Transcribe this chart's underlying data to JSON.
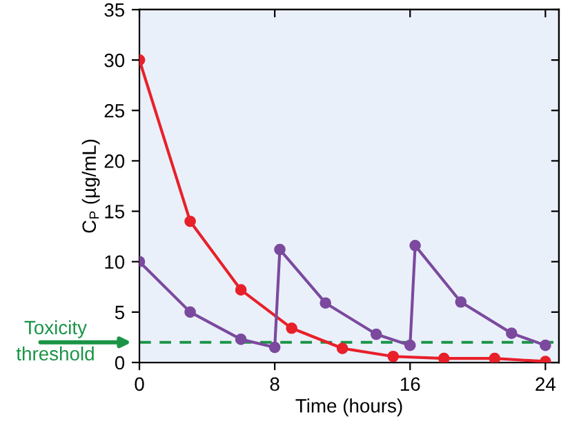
{
  "chart_data": {
    "type": "line",
    "xlabel": "Time (hours)",
    "ylabel": "C$_{P}$ (µg/mL)",
    "xlim": [
      0,
      24.8
    ],
    "ylim": [
      0,
      35
    ],
    "xticks": [
      0,
      8,
      16,
      24
    ],
    "yticks": [
      0,
      5,
      10,
      15,
      20,
      25,
      30,
      35
    ],
    "grid": false,
    "marker": "circle",
    "line_style": "solid",
    "series": [
      {
        "color": "#e8202a",
        "x": [
          0,
          3,
          6,
          9,
          12,
          15,
          18,
          21,
          24
        ],
        "values": [
          30,
          14,
          7.2,
          3.4,
          1.4,
          0.6,
          0.4,
          0.4,
          0.1
        ]
      },
      {
        "color": "#7b4a9e",
        "x": [
          0,
          3,
          6,
          8,
          8.3,
          11,
          14,
          16,
          16.3,
          19,
          22,
          24
        ],
        "values": [
          10,
          5,
          2.3,
          1.5,
          11.2,
          5.9,
          2.8,
          1.7,
          11.6,
          6.0,
          2.9,
          1.7
        ]
      }
    ],
    "ref_lines": [
      {
        "axis": "y",
        "value": 2,
        "label": "Toxicity\nthreshold",
        "color": "#1a9447",
        "line_style": "dashed"
      }
    ]
  }
}
